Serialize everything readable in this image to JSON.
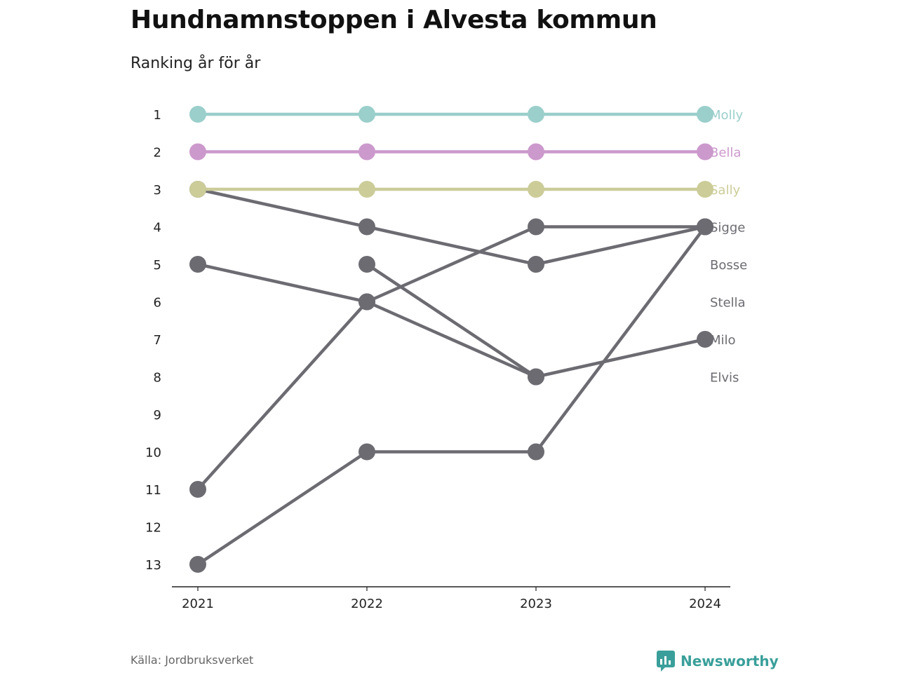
{
  "title": "Hundnamnstoppen i Alvesta kommun",
  "subtitle": "Ranking år för år",
  "source": "Källa: Jordbruksverket",
  "brand": {
    "name": "Newsworthy",
    "icon": "newsworthy-logo-icon",
    "color": "#3a9f9a"
  },
  "chart_data": {
    "type": "line",
    "chart_subtype": "bump",
    "x": [
      "2021",
      "2022",
      "2023",
      "2024"
    ],
    "ylim": [
      1,
      13
    ],
    "y_ticks": [
      "1",
      "2",
      "3",
      "4",
      "5",
      "6",
      "7",
      "8",
      "9",
      "10",
      "11",
      "12",
      "13"
    ],
    "y_reversed": true,
    "grid": false,
    "series": [
      {
        "name": "Molly",
        "values": [
          1,
          1,
          1,
          1
        ],
        "color": "#9acfcb",
        "label_rank": 1
      },
      {
        "name": "Bella",
        "values": [
          2,
          2,
          2,
          2
        ],
        "color": "#cc99cc",
        "label_rank": 2
      },
      {
        "name": "Sally",
        "values": [
          3,
          3,
          3,
          3
        ],
        "color": "#cccc99",
        "label_rank": 3
      },
      {
        "name": "Sigge",
        "values": [
          11,
          6,
          4,
          4
        ],
        "color": "#6d6b72",
        "label_rank": 4
      },
      {
        "name": "Bosse",
        "values": [
          3,
          4,
          5,
          4
        ],
        "color": "#6d6b72",
        "label_rank": 5
      },
      {
        "name": "Stella",
        "values": [
          13,
          10,
          10,
          4
        ],
        "color": "#6d6b72",
        "label_rank": 6
      },
      {
        "name": "Milo",
        "values": [
          5,
          6,
          8,
          7
        ],
        "color": "#6d6b72",
        "label_rank": 7
      },
      {
        "name": "Elvis",
        "values": [
          null,
          5,
          8,
          null
        ],
        "color": "#6d6b72",
        "label_rank": 8
      }
    ]
  }
}
